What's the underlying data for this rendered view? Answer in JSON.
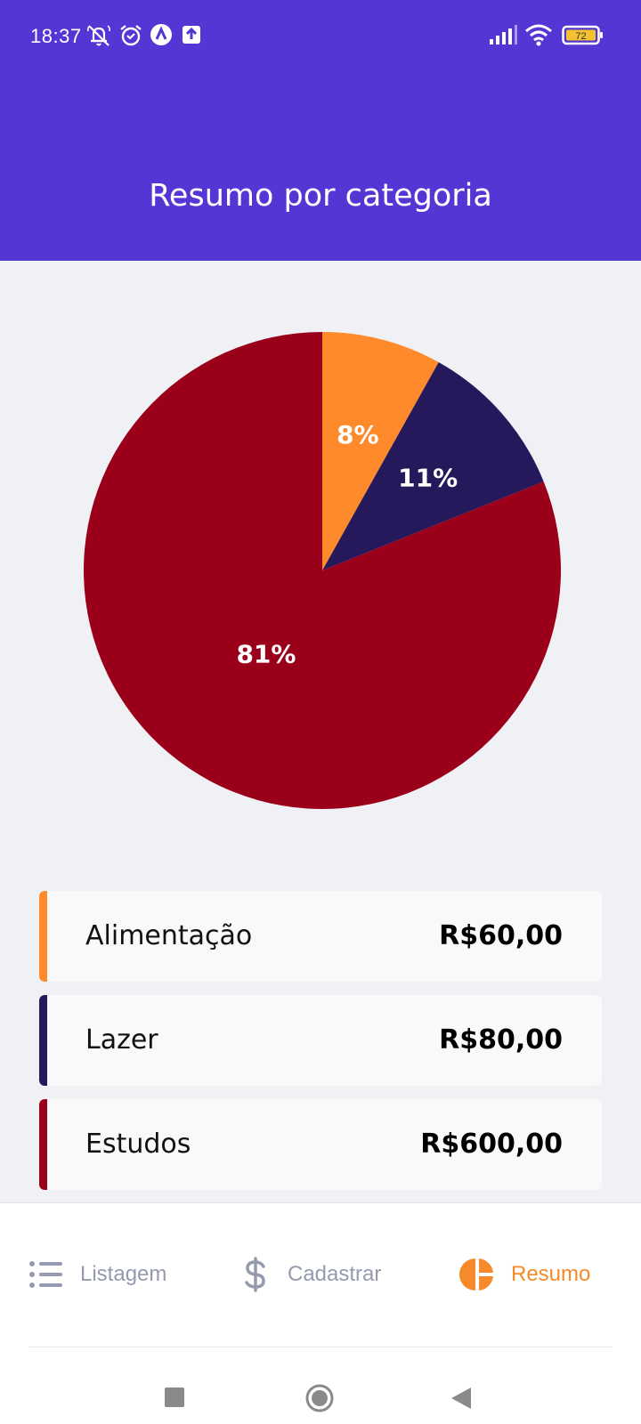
{
  "status_bar": {
    "time": "18:37",
    "battery": "72",
    "icons": [
      "notifications-off-icon",
      "alarm-icon",
      "app-a-icon",
      "upload-icon",
      "signal-icon",
      "wifi-icon",
      "battery-icon"
    ]
  },
  "header": {
    "title": "Resumo por categoria",
    "background_color": "#5436D4"
  },
  "chart_data": {
    "type": "pie",
    "slices": [
      {
        "label": "Alimentação",
        "value": 60,
        "percent_label": "8%",
        "color": "#FF8A2B"
      },
      {
        "label": "Lazer",
        "value": 80,
        "percent_label": "11%",
        "color": "#25195B"
      },
      {
        "label": "Estudos",
        "value": 600,
        "percent_label": "81%",
        "color": "#9B001A"
      }
    ],
    "start_angle": "12 o'clock",
    "direction": "clockwise"
  },
  "summary": [
    {
      "name": "Alimentação",
      "value": "R$60,00",
      "color": "#FF8A2B"
    },
    {
      "name": "Lazer",
      "value": "R$80,00",
      "color": "#25195B"
    },
    {
      "name": "Estudos",
      "value": "R$600,00",
      "color": "#9B001A"
    }
  ],
  "nav": {
    "items": [
      {
        "label": "Listagem",
        "icon": "list-icon",
        "active": false
      },
      {
        "label": "Cadastrar",
        "icon": "dollar-icon",
        "active": false
      },
      {
        "label": "Resumo",
        "icon": "pie-chart-icon",
        "active": true
      }
    ],
    "active_color": "#F58A2A",
    "inactive_color": "#969AAE"
  },
  "system_nav": [
    "recent-apps-icon",
    "home-icon",
    "back-icon"
  ]
}
